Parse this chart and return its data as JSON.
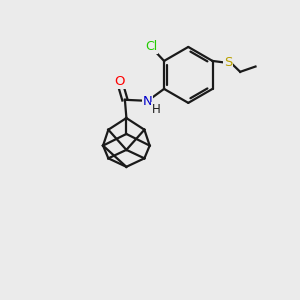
{
  "bg_color": "#ebebeb",
  "bond_color": "#1a1a1a",
  "O_color": "#ff0000",
  "N_color": "#0000cc",
  "S_color": "#b8a000",
  "Cl_color": "#22cc00",
  "line_width": 1.6,
  "figsize": [
    3.0,
    3.0
  ],
  "dpi": 100,
  "xlim": [
    0,
    10
  ],
  "ylim": [
    0,
    10
  ]
}
